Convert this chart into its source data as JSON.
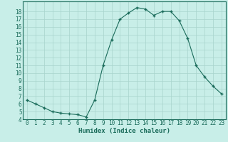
{
  "x": [
    0,
    1,
    2,
    3,
    4,
    5,
    6,
    7,
    8,
    9,
    10,
    11,
    12,
    13,
    14,
    15,
    16,
    17,
    18,
    19,
    20,
    21,
    22,
    23
  ],
  "y": [
    6.5,
    6.0,
    5.5,
    5.0,
    4.8,
    4.7,
    4.6,
    4.3,
    6.5,
    11.0,
    14.3,
    17.0,
    17.8,
    18.5,
    18.3,
    17.5,
    18.0,
    18.0,
    16.8,
    14.5,
    11.0,
    9.5,
    8.3,
    7.3
  ],
  "xlabel": "Humidex (Indice chaleur)",
  "ylim": [
    4,
    19
  ],
  "xlim": [
    -0.5,
    23.5
  ],
  "yticks": [
    4,
    5,
    6,
    7,
    8,
    9,
    10,
    11,
    12,
    13,
    14,
    15,
    16,
    17,
    18
  ],
  "xticks": [
    0,
    1,
    2,
    3,
    4,
    5,
    6,
    7,
    8,
    9,
    10,
    11,
    12,
    13,
    14,
    15,
    16,
    17,
    18,
    19,
    20,
    21,
    22,
    23
  ],
  "line_color": "#1a6b5a",
  "marker": "+",
  "bg_color": "#c8eee8",
  "grid_color": "#a8d4cc",
  "tick_color": "#1a6b5a",
  "label_color": "#1a6b5a",
  "tick_fontsize": 5.5,
  "xlabel_fontsize": 6.5
}
